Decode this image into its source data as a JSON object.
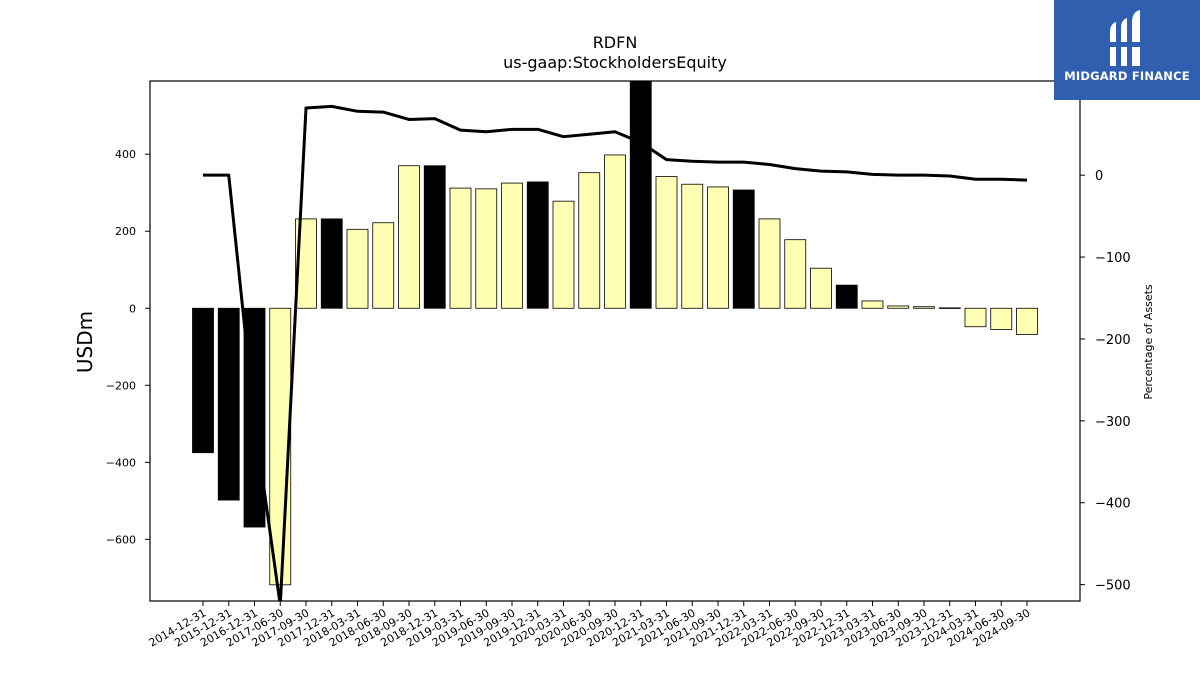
{
  "chart_data": {
    "type": "bar",
    "title": "RDFN",
    "subtitle": "us-gaap:StockholdersEquity",
    "ylabel": "USDm",
    "y2label": "Percentage of Assets",
    "categories": [
      "2014-12-31",
      "2015-12-31",
      "2016-12-31",
      "2017-06-30",
      "2017-09-30",
      "2017-12-31",
      "2018-03-31",
      "2018-06-30",
      "2018-09-30",
      "2018-12-31",
      "2019-03-31",
      "2019-06-30",
      "2019-09-30",
      "2019-12-31",
      "2020-03-31",
      "2020-06-30",
      "2020-09-30",
      "2020-12-31",
      "2021-03-31",
      "2021-06-30",
      "2021-09-30",
      "2021-12-31",
      "2022-03-31",
      "2022-06-30",
      "2022-09-30",
      "2022-12-31",
      "2023-03-31",
      "2023-06-30",
      "2023-09-30",
      "2023-12-31",
      "2024-03-31",
      "2024-06-30",
      "2024-09-30"
    ],
    "series": [
      {
        "values": [
          -375,
          -498,
          -568,
          -718,
          232,
          232,
          205,
          222,
          370,
          370,
          312,
          310,
          325,
          328,
          278,
          352,
          398,
          600,
          342,
          322,
          315,
          307,
          232,
          178,
          104,
          60,
          19,
          6,
          4,
          1,
          -48,
          -55,
          -68
        ],
        "colors": [
          "#000000",
          "#000000",
          "#000000",
          "#ffffb3",
          "#ffffb3",
          "#000000",
          "#ffffb3",
          "#ffffb3",
          "#ffffb3",
          "#000000",
          "#ffffb3",
          "#ffffb3",
          "#ffffb3",
          "#000000",
          "#ffffb3",
          "#ffffb3",
          "#ffffb3",
          "#000000",
          "#ffffb3",
          "#ffffb3",
          "#ffffb3",
          "#000000",
          "#ffffb3",
          "#ffffb3",
          "#ffffb3",
          "#000000",
          "#ffffb3",
          "#ffffb3",
          "#ffffb3",
          "#000000",
          "#ffffb3",
          "#ffffb3",
          "#ffffb3"
        ]
      },
      {
        "axis": "right",
        "type": "line",
        "values": [
          0,
          0,
          -300,
          -525,
          82,
          84,
          78,
          77,
          68,
          69,
          55,
          53,
          56,
          56,
          47,
          50,
          53,
          40,
          19,
          17,
          16,
          16,
          13,
          8,
          5,
          4,
          1,
          0,
          0,
          -1,
          -5,
          -5,
          -6
        ]
      }
    ],
    "ylim": [
      -760,
      590
    ],
    "y2lim": [
      -520,
      115
    ],
    "yticks": [
      -600,
      -400,
      -200,
      0,
      200,
      400
    ],
    "y2ticks": [
      -500,
      -400,
      -300,
      -200,
      -100,
      0
    ],
    "bar_edge_color": "#000000",
    "line_color": "#000000"
  },
  "logo": {
    "text": "MIDGARD FINANCE",
    "background": "#2f5fae"
  }
}
